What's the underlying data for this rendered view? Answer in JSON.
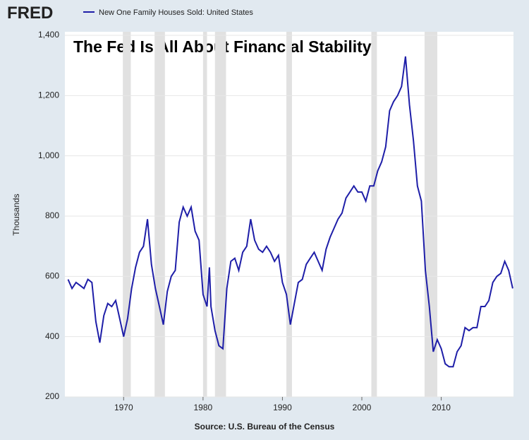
{
  "chart_data": {
    "type": "line",
    "brand": "FRED",
    "title": "The Fed Is All About Financial Stability",
    "y_label": "Thousands",
    "source": "Source: U.S. Bureau of the Census",
    "xlim": [
      1962.6,
      2019.1
    ],
    "xticks": [
      1970,
      1980,
      1990,
      2000,
      2010
    ],
    "ylim": [
      200,
      1400
    ],
    "yticks": [
      200,
      400,
      600,
      800,
      {
        "value": 1000,
        "label": "1,000"
      },
      {
        "value": 1200,
        "label": "1,200"
      },
      {
        "value": 1400,
        "label": "1,400"
      }
    ],
    "grid": true,
    "recessions": [
      [
        1969.9,
        1970.9
      ],
      [
        1973.9,
        1975.2
      ],
      [
        1980.0,
        1980.5
      ],
      [
        1981.5,
        1982.9
      ],
      [
        1990.5,
        1991.2
      ],
      [
        2001.2,
        2001.9
      ],
      [
        2007.9,
        2009.5
      ]
    ],
    "recession_color": "#e1e1e1",
    "x": [
      1963.0,
      1963.5,
      1964.0,
      1964.5,
      1965.0,
      1965.5,
      1966.0,
      1966.5,
      1967.0,
      1967.5,
      1968.0,
      1968.5,
      1969.0,
      1969.5,
      1970.0,
      1970.5,
      1971.0,
      1971.5,
      1972.0,
      1972.5,
      1973.0,
      1973.5,
      1974.0,
      1974.5,
      1975.0,
      1975.5,
      1976.0,
      1976.5,
      1977.0,
      1977.5,
      1978.0,
      1978.5,
      1979.0,
      1979.5,
      1980.0,
      1980.5,
      1980.8,
      1981.0,
      1981.5,
      1982.0,
      1982.5,
      1983.0,
      1983.5,
      1984.0,
      1984.5,
      1985.0,
      1985.5,
      1986.0,
      1986.5,
      1987.0,
      1987.5,
      1988.0,
      1988.5,
      1989.0,
      1989.5,
      1990.0,
      1990.5,
      1991.0,
      1991.5,
      1992.0,
      1992.5,
      1993.0,
      1993.5,
      1994.0,
      1994.5,
      1995.0,
      1995.5,
      1996.0,
      1996.5,
      1997.0,
      1997.5,
      1998.0,
      1998.5,
      1999.0,
      1999.5,
      2000.0,
      2000.5,
      2001.0,
      2001.5,
      2002.0,
      2002.5,
      2003.0,
      2003.5,
      2004.0,
      2004.5,
      2005.0,
      2005.5,
      2006.0,
      2006.5,
      2007.0,
      2007.5,
      2008.0,
      2008.5,
      2009.0,
      2009.5,
      2010.0,
      2010.5,
      2011.0,
      2011.5,
      2012.0,
      2012.5,
      2013.0,
      2013.5,
      2014.0,
      2014.5,
      2015.0,
      2015.5,
      2016.0,
      2016.5,
      2017.0,
      2017.5,
      2018.0,
      2018.5,
      2019.0
    ],
    "series": [
      {
        "name": "New One Family Houses Sold: United States",
        "color": "#1e1ea8",
        "values": [
          590,
          560,
          580,
          570,
          560,
          590,
          580,
          450,
          380,
          470,
          510,
          500,
          520,
          460,
          400,
          460,
          560,
          630,
          680,
          700,
          790,
          640,
          560,
          500,
          440,
          550,
          600,
          620,
          780,
          830,
          800,
          830,
          750,
          720,
          540,
          500,
          630,
          500,
          420,
          370,
          360,
          560,
          650,
          660,
          620,
          680,
          700,
          790,
          720,
          690,
          680,
          700,
          680,
          650,
          670,
          580,
          540,
          440,
          510,
          580,
          590,
          640,
          660,
          680,
          650,
          620,
          690,
          730,
          760,
          790,
          810,
          860,
          880,
          900,
          880,
          880,
          850,
          900,
          900,
          950,
          980,
          1030,
          1150,
          1180,
          1200,
          1230,
          1330,
          1170,
          1050,
          900,
          850,
          620,
          500,
          350,
          390,
          360,
          310,
          300,
          300,
          350,
          370,
          430,
          420,
          430,
          430,
          500,
          500,
          520,
          580,
          600,
          610,
          650,
          620,
          560
        ]
      }
    ]
  }
}
